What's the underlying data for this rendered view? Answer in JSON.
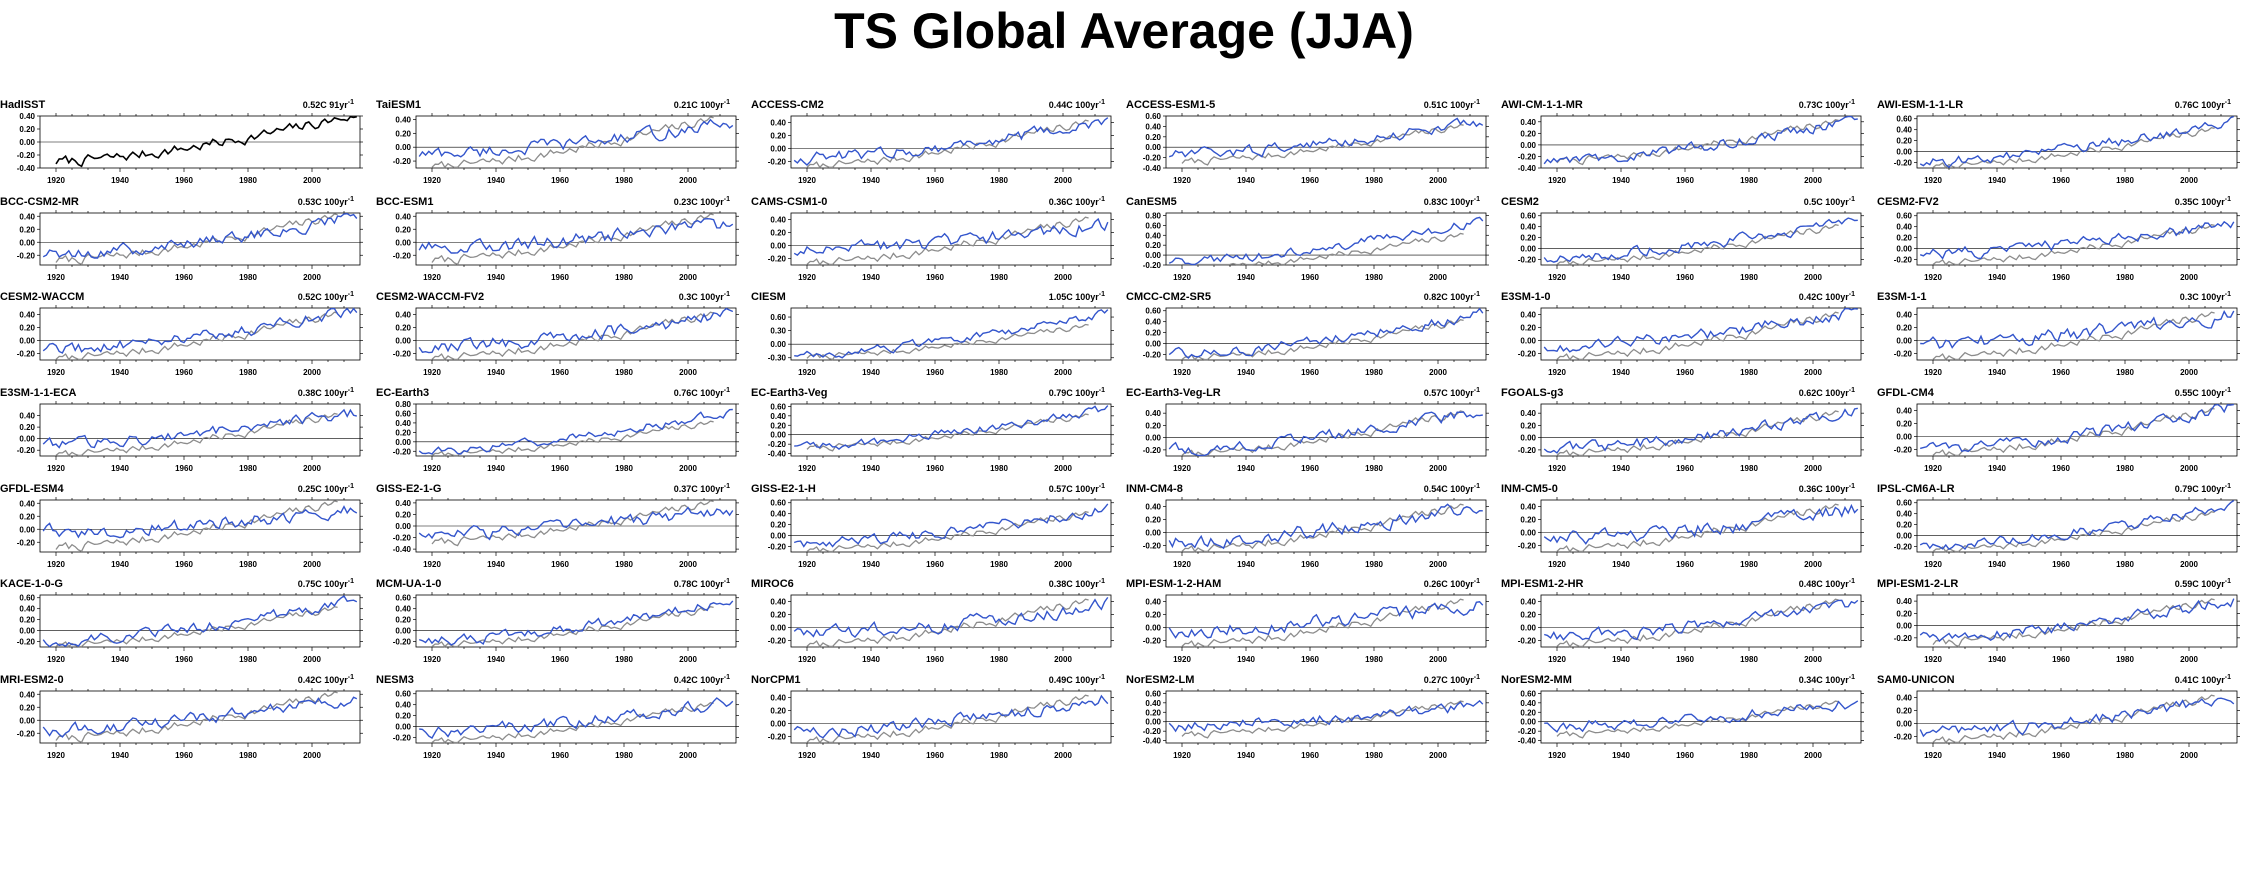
{
  "title": "TS Global Average (JJA)",
  "colors": {
    "observed": "#000000",
    "model": "#3355cc",
    "reference": "#8c8c8c"
  },
  "chart_data": {
    "type": "line",
    "title": "TS Global Average (JJA)",
    "xlim": [
      1915,
      2015
    ],
    "x_ticks": [
      1920,
      1940,
      1960,
      1980,
      2000
    ],
    "panels": [
      {
        "name": "HadISST",
        "trend": "0.52C 91yr",
        "exp": "-1",
        "observed": true,
        "ylim": [
          -0.4,
          0.4
        ],
        "yticks": [
          "0.40",
          "0.20",
          "0.00",
          "-0.20",
          "-0.40"
        ],
        "start": -0.3,
        "end": 0.42,
        "noise": 0.07
      },
      {
        "name": "TaiESM1",
        "trend": "0.21C 100yr",
        "exp": "-1",
        "ylim": [
          -0.3,
          0.45
        ],
        "yticks": [
          "0.40",
          "0.20",
          "0.00",
          "-0.20"
        ],
        "start": -0.1,
        "end": 0.35,
        "noise": 0.08
      },
      {
        "name": "ACCESS-CM2",
        "trend": "0.44C 100yr",
        "exp": "-1",
        "ylim": [
          -0.3,
          0.5
        ],
        "yticks": [
          "0.40",
          "0.20",
          "0.00",
          "-0.20"
        ],
        "start": -0.15,
        "end": 0.4,
        "noise": 0.08
      },
      {
        "name": "ACCESS-ESM1-5",
        "trend": "0.51C 100yr",
        "exp": "-1",
        "ylim": [
          -0.4,
          0.6
        ],
        "yticks": [
          "0.60",
          "0.40",
          "0.20",
          "0.00",
          "-0.20",
          "-0.40"
        ],
        "start": -0.15,
        "end": 0.5,
        "noise": 0.09
      },
      {
        "name": "AWI-CM-1-1-MR",
        "trend": "0.73C 100yr",
        "exp": "-1",
        "ylim": [
          -0.4,
          0.5
        ],
        "yticks": [
          "0.40",
          "0.20",
          "0.00",
          "-0.20",
          "-0.40"
        ],
        "start": -0.3,
        "end": 0.45,
        "noise": 0.08
      },
      {
        "name": "AWI-ESM-1-1-LR",
        "trend": "0.76C 100yr",
        "exp": "-1",
        "ylim": [
          -0.3,
          0.65
        ],
        "yticks": [
          "0.60",
          "0.40",
          "0.20",
          "0.00",
          "-0.20"
        ],
        "start": -0.2,
        "end": 0.55,
        "noise": 0.08
      },
      {
        "name": "BCC-CSM2-MR",
        "trend": "0.53C 100yr",
        "exp": "-1",
        "ylim": [
          -0.35,
          0.45
        ],
        "yticks": [
          "0.40",
          "0.20",
          "0.00",
          "-0.20"
        ],
        "start": -0.2,
        "end": 0.4,
        "noise": 0.08
      },
      {
        "name": "BCC-ESM1",
        "trend": "0.23C 100yr",
        "exp": "-1",
        "ylim": [
          -0.35,
          0.45
        ],
        "yticks": [
          "0.40",
          "0.20",
          "0.00",
          "-0.20"
        ],
        "start": -0.1,
        "end": 0.3,
        "noise": 0.09
      },
      {
        "name": "CAMS-CSM1-0",
        "trend": "0.36C 100yr",
        "exp": "-1",
        "ylim": [
          -0.3,
          0.5
        ],
        "yticks": [
          "0.40",
          "0.20",
          "0.00",
          "-0.20"
        ],
        "start": -0.1,
        "end": 0.35,
        "noise": 0.09
      },
      {
        "name": "CanESM5",
        "trend": "0.83C 100yr",
        "exp": "-1",
        "ylim": [
          -0.2,
          0.85
        ],
        "yticks": [
          "0.80",
          "0.60",
          "0.40",
          "0.20",
          "0.00",
          "-0.20"
        ],
        "start": -0.15,
        "end": 0.7,
        "noise": 0.08
      },
      {
        "name": "CESM2",
        "trend": "0.5C 100yr",
        "exp": "-1",
        "ylim": [
          -0.3,
          0.65
        ],
        "yticks": [
          "0.60",
          "0.40",
          "0.20",
          "0.00",
          "-0.20"
        ],
        "start": -0.15,
        "end": 0.5,
        "noise": 0.08
      },
      {
        "name": "CESM2-FV2",
        "trend": "0.35C 100yr",
        "exp": "-1",
        "ylim": [
          -0.3,
          0.65
        ],
        "yticks": [
          "0.60",
          "0.40",
          "0.20",
          "0.00",
          "-0.20"
        ],
        "start": -0.1,
        "end": 0.45,
        "noise": 0.09
      },
      {
        "name": "CESM2-WACCM",
        "trend": "0.52C 100yr",
        "exp": "-1",
        "ylim": [
          -0.3,
          0.5
        ],
        "yticks": [
          "0.40",
          "0.20",
          "0.00",
          "-0.20"
        ],
        "start": -0.15,
        "end": 0.45,
        "noise": 0.08
      },
      {
        "name": "CESM2-WACCM-FV2",
        "trend": "0.3C 100yr",
        "exp": "-1",
        "ylim": [
          -0.3,
          0.5
        ],
        "yticks": [
          "0.40",
          "0.20",
          "0.00",
          "-0.20"
        ],
        "start": -0.1,
        "end": 0.4,
        "noise": 0.09
      },
      {
        "name": "CIESM",
        "trend": "1.05C 100yr",
        "exp": "-1",
        "ylim": [
          -0.35,
          0.8
        ],
        "yticks": [
          "0.60",
          "0.30",
          "0.00",
          "-0.30"
        ],
        "start": -0.25,
        "end": 0.7,
        "noise": 0.08
      },
      {
        "name": "CMCC-CM2-SR5",
        "trend": "0.82C 100yr",
        "exp": "-1",
        "ylim": [
          -0.3,
          0.65
        ],
        "yticks": [
          "0.60",
          "0.40",
          "0.20",
          "0.00",
          "-0.20"
        ],
        "start": -0.2,
        "end": 0.55,
        "noise": 0.08
      },
      {
        "name": "E3SM-1-0",
        "trend": "0.42C 100yr",
        "exp": "-1",
        "ylim": [
          -0.3,
          0.5
        ],
        "yticks": [
          "0.40",
          "0.20",
          "0.00",
          "-0.20"
        ],
        "start": -0.1,
        "end": 0.45,
        "noise": 0.08
      },
      {
        "name": "E3SM-1-1",
        "trend": "0.3C 100yr",
        "exp": "-1",
        "ylim": [
          -0.3,
          0.5
        ],
        "yticks": [
          "0.40",
          "0.20",
          "0.00",
          "-0.20"
        ],
        "start": -0.05,
        "end": 0.4,
        "noise": 0.09
      },
      {
        "name": "E3SM-1-1-ECA",
        "trend": "0.38C 100yr",
        "exp": "-1",
        "ylim": [
          -0.3,
          0.6
        ],
        "yticks": [
          "0.40",
          "0.20",
          "0.00",
          "-0.20"
        ],
        "start": -0.1,
        "end": 0.45,
        "noise": 0.08
      },
      {
        "name": "EC-Earth3",
        "trend": "0.76C 100yr",
        "exp": "-1",
        "ylim": [
          -0.3,
          0.8
        ],
        "yticks": [
          "0.80",
          "0.60",
          "0.40",
          "0.20",
          "0.00",
          "-0.20"
        ],
        "start": -0.2,
        "end": 0.65,
        "noise": 0.08
      },
      {
        "name": "EC-Earth3-Veg",
        "trend": "0.79C 100yr",
        "exp": "-1",
        "ylim": [
          -0.45,
          0.65
        ],
        "yticks": [
          "0.60",
          "0.40",
          "0.20",
          "0.00",
          "-0.20",
          "-0.40"
        ],
        "start": -0.25,
        "end": 0.55,
        "noise": 0.08
      },
      {
        "name": "EC-Earth3-Veg-LR",
        "trend": "0.57C 100yr",
        "exp": "-1",
        "ylim": [
          -0.3,
          0.55
        ],
        "yticks": [
          "0.40",
          "0.20",
          "0.00",
          "-0.20"
        ],
        "start": -0.2,
        "end": 0.45,
        "noise": 0.08
      },
      {
        "name": "FGOALS-g3",
        "trend": "0.62C 100yr",
        "exp": "-1",
        "ylim": [
          -0.3,
          0.55
        ],
        "yticks": [
          "0.40",
          "0.20",
          "0.00",
          "-0.20"
        ],
        "start": -0.2,
        "end": 0.45,
        "noise": 0.08
      },
      {
        "name": "GFDL-CM4",
        "trend": "0.55C 100yr",
        "exp": "-1",
        "ylim": [
          -0.3,
          0.5
        ],
        "yticks": [
          "0.40",
          "0.20",
          "0.00",
          "-0.20"
        ],
        "start": -0.2,
        "end": 0.45,
        "noise": 0.08
      },
      {
        "name": "GFDL-ESM4",
        "trend": "0.25C 100yr",
        "exp": "-1",
        "ylim": [
          -0.35,
          0.45
        ],
        "yticks": [
          "0.40",
          "0.20",
          "0.00",
          "-0.20"
        ],
        "start": -0.05,
        "end": 0.3,
        "noise": 0.09
      },
      {
        "name": "GISS-E2-1-G",
        "trend": "0.37C 100yr",
        "exp": "-1",
        "ylim": [
          -0.45,
          0.45
        ],
        "yticks": [
          "0.40",
          "0.20",
          "0.00",
          "-0.20",
          "-0.40"
        ],
        "start": -0.15,
        "end": 0.3,
        "noise": 0.1
      },
      {
        "name": "GISS-E2-1-H",
        "trend": "0.57C 100yr",
        "exp": "-1",
        "ylim": [
          -0.3,
          0.65
        ],
        "yticks": [
          "0.60",
          "0.40",
          "0.20",
          "0.00",
          "-0.20"
        ],
        "start": -0.15,
        "end": 0.5,
        "noise": 0.08
      },
      {
        "name": "INM-CM4-8",
        "trend": "0.54C 100yr",
        "exp": "-1",
        "ylim": [
          -0.3,
          0.5
        ],
        "yticks": [
          "0.40",
          "0.20",
          "0.00",
          "-0.20"
        ],
        "start": -0.15,
        "end": 0.4,
        "noise": 0.09
      },
      {
        "name": "INM-CM5-0",
        "trend": "0.36C 100yr",
        "exp": "-1",
        "ylim": [
          -0.3,
          0.5
        ],
        "yticks": [
          "0.40",
          "0.20",
          "0.00",
          "-0.20"
        ],
        "start": -0.1,
        "end": 0.35,
        "noise": 0.1
      },
      {
        "name": "IPSL-CM6A-LR",
        "trend": "0.79C 100yr",
        "exp": "-1",
        "ylim": [
          -0.3,
          0.65
        ],
        "yticks": [
          "0.60",
          "0.40",
          "0.20",
          "0.00",
          "-0.20"
        ],
        "start": -0.2,
        "end": 0.55,
        "noise": 0.08
      },
      {
        "name": "KACE-1-0-G",
        "trend": "0.75C 100yr",
        "exp": "-1",
        "ylim": [
          -0.3,
          0.65
        ],
        "yticks": [
          "0.60",
          "0.40",
          "0.20",
          "0.00",
          "-0.20"
        ],
        "start": -0.2,
        "end": 0.55,
        "noise": 0.08
      },
      {
        "name": "MCM-UA-1-0",
        "trend": "0.78C 100yr",
        "exp": "-1",
        "ylim": [
          -0.3,
          0.65
        ],
        "yticks": [
          "0.60",
          "0.40",
          "0.20",
          "0.00",
          "-0.20"
        ],
        "start": -0.2,
        "end": 0.55,
        "noise": 0.08
      },
      {
        "name": "MIROC6",
        "trend": "0.38C 100yr",
        "exp": "-1",
        "ylim": [
          -0.3,
          0.5
        ],
        "yticks": [
          "0.40",
          "0.20",
          "0.00",
          "-0.20"
        ],
        "start": -0.1,
        "end": 0.35,
        "noise": 0.09
      },
      {
        "name": "MPI-ESM-1-2-HAM",
        "trend": "0.26C 100yr",
        "exp": "-1",
        "ylim": [
          -0.3,
          0.5
        ],
        "yticks": [
          "0.40",
          "0.20",
          "0.00",
          "-0.20"
        ],
        "start": -0.05,
        "end": 0.35,
        "noise": 0.09
      },
      {
        "name": "MPI-ESM1-2-HR",
        "trend": "0.48C 100yr",
        "exp": "-1",
        "ylim": [
          -0.3,
          0.5
        ],
        "yticks": [
          "0.40",
          "0.20",
          "0.00",
          "-0.20"
        ],
        "start": -0.15,
        "end": 0.4,
        "noise": 0.08
      },
      {
        "name": "MPI-ESM1-2-LR",
        "trend": "0.59C 100yr",
        "exp": "-1",
        "ylim": [
          -0.35,
          0.5
        ],
        "yticks": [
          "0.40",
          "0.20",
          "0.00",
          "-0.20"
        ],
        "start": -0.2,
        "end": 0.4,
        "noise": 0.08
      },
      {
        "name": "MRI-ESM2-0",
        "trend": "0.42C 100yr",
        "exp": "-1",
        "ylim": [
          -0.35,
          0.45
        ],
        "yticks": [
          "0.40",
          "0.20",
          "0.00",
          "-0.20"
        ],
        "start": -0.15,
        "end": 0.35,
        "noise": 0.08
      },
      {
        "name": "NESM3",
        "trend": "0.42C 100yr",
        "exp": "-1",
        "ylim": [
          -0.3,
          0.65
        ],
        "yticks": [
          "0.60",
          "0.40",
          "0.20",
          "0.00",
          "-0.20"
        ],
        "start": -0.1,
        "end": 0.45,
        "noise": 0.09
      },
      {
        "name": "NorCPM1",
        "trend": "0.49C 100yr",
        "exp": "-1",
        "ylim": [
          -0.3,
          0.5
        ],
        "yticks": [
          "0.40",
          "0.20",
          "0.00",
          "-0.20"
        ],
        "start": -0.15,
        "end": 0.4,
        "noise": 0.08
      },
      {
        "name": "NorESM2-LM",
        "trend": "0.27C 100yr",
        "exp": "-1",
        "ylim": [
          -0.45,
          0.65
        ],
        "yticks": [
          "0.60",
          "0.40",
          "0.20",
          "0.00",
          "-0.20",
          "-0.40"
        ],
        "start": -0.1,
        "end": 0.35,
        "noise": 0.1
      },
      {
        "name": "NorESM2-MM",
        "trend": "0.34C 100yr",
        "exp": "-1",
        "ylim": [
          -0.45,
          0.65
        ],
        "yticks": [
          "0.60",
          "0.40",
          "0.20",
          "0.00",
          "-0.20",
          "-0.40"
        ],
        "start": -0.1,
        "end": 0.4,
        "noise": 0.1
      },
      {
        "name": "SAM0-UNICON",
        "trend": "0.41C 100yr",
        "exp": "-1",
        "ylim": [
          -0.3,
          0.5
        ],
        "yticks": [
          "0.40",
          "0.20",
          "0.00",
          "-0.20"
        ],
        "start": -0.15,
        "end": 0.4,
        "noise": 0.08
      }
    ]
  }
}
